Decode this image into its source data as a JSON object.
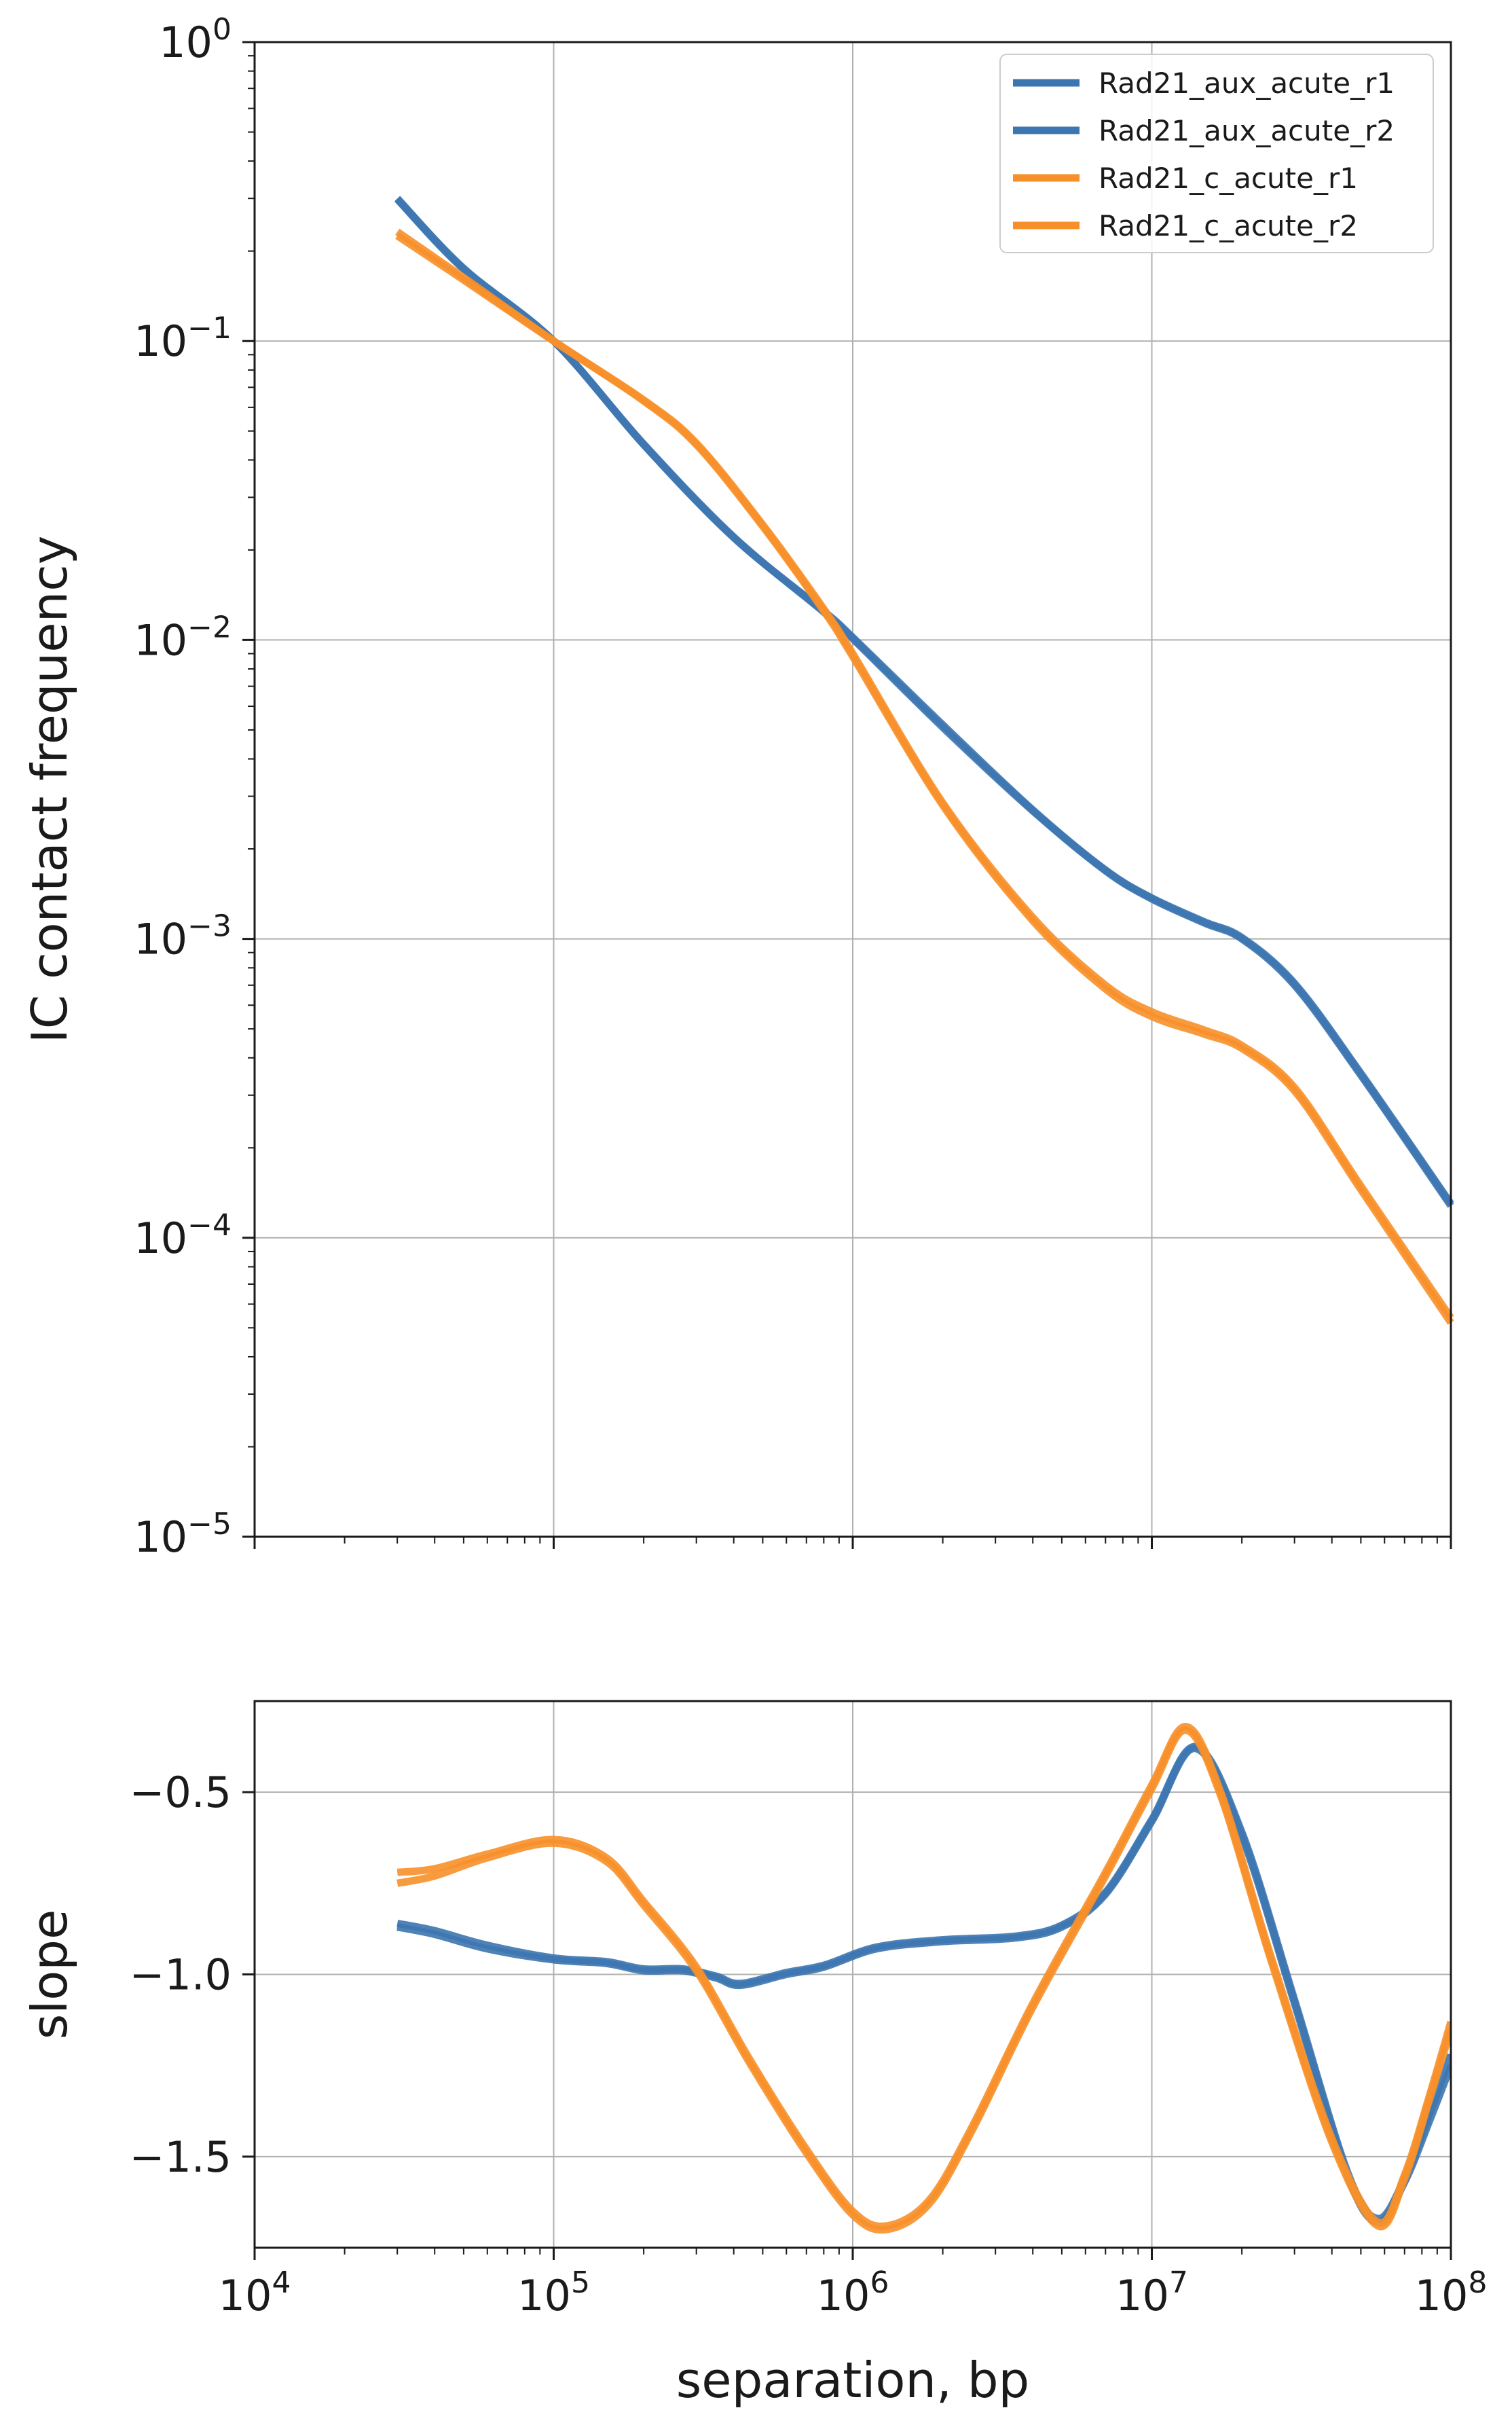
{
  "chart_data": [
    {
      "type": "line",
      "panel": "top",
      "xscale": "log",
      "yscale": "log",
      "xlim": [
        10000,
        100000000
      ],
      "ylim": [
        1e-05,
        1
      ],
      "xlabel": "",
      "ylabel": "IC contact frequency",
      "grid": true,
      "legend_position": "top-right",
      "x_ticks": [
        10000,
        100000,
        1000000,
        10000000,
        100000000
      ],
      "y_ticks": [
        1e-05,
        0.0001,
        0.001,
        0.01,
        0.1,
        1
      ],
      "y_tick_labels": [
        {
          "base": "10",
          "exp": "−5"
        },
        {
          "base": "10",
          "exp": "−4"
        },
        {
          "base": "10",
          "exp": "−3"
        },
        {
          "base": "10",
          "exp": "−2"
        },
        {
          "base": "10",
          "exp": "−1"
        },
        {
          "base": "10",
          "exp": "0"
        }
      ],
      "series": [
        {
          "name": "Rad21_aux_acute_r1",
          "color": "#3c76b0",
          "x": [
            30000,
            50000,
            100000,
            200000,
            400000,
            800000,
            1000000,
            2000000,
            4000000,
            7000000,
            10000000,
            15000000,
            20000000,
            30000000,
            50000000,
            100000000
          ],
          "y": [
            0.3,
            0.175,
            0.1,
            0.045,
            0.022,
            0.0125,
            0.0102,
            0.0052,
            0.0027,
            0.0017,
            0.00137,
            0.00114,
            0.00101,
            0.00071,
            0.000355,
            0.00013
          ]
        },
        {
          "name": "Rad21_aux_acute_r2",
          "color": "#3c76b0",
          "x": [
            30000,
            50000,
            100000,
            200000,
            400000,
            800000,
            1000000,
            2000000,
            4000000,
            7000000,
            10000000,
            15000000,
            20000000,
            30000000,
            50000000,
            100000000
          ],
          "y": [
            0.298,
            0.174,
            0.1,
            0.0452,
            0.0221,
            0.0124,
            0.0101,
            0.0051,
            0.00268,
            0.00169,
            0.00136,
            0.00113,
            0.001,
            0.0007,
            0.00035,
            0.000128
          ]
        },
        {
          "name": "Rad21_c_acute_r1",
          "color": "#f7902a",
          "x": [
            30000,
            50000,
            100000,
            200000,
            300000,
            500000,
            800000,
            1000000,
            2000000,
            4000000,
            7000000,
            10000000,
            15000000,
            20000000,
            30000000,
            50000000,
            100000000
          ],
          "y": [
            0.225,
            0.16,
            0.1,
            0.063,
            0.045,
            0.024,
            0.0125,
            0.0088,
            0.0028,
            0.00115,
            0.00068,
            0.00055,
            0.00048,
            0.00043,
            0.00031,
            0.000145,
            5.2e-05
          ]
        },
        {
          "name": "Rad21_c_acute_r2",
          "color": "#f7902a",
          "x": [
            30000,
            50000,
            100000,
            200000,
            300000,
            500000,
            800000,
            1000000,
            2000000,
            4000000,
            7000000,
            10000000,
            15000000,
            20000000,
            30000000,
            50000000,
            100000000
          ],
          "y": [
            0.232,
            0.163,
            0.1,
            0.0635,
            0.0455,
            0.0243,
            0.0127,
            0.009,
            0.00285,
            0.00118,
            0.0007,
            0.00057,
            0.000495,
            0.00044,
            0.000318,
            0.000149,
            5.4e-05
          ]
        }
      ]
    },
    {
      "type": "line",
      "panel": "bottom",
      "xscale": "log",
      "yscale": "linear",
      "xlim": [
        10000,
        100000000
      ],
      "ylim": [
        -1.75,
        -0.25
      ],
      "xlabel": "separation, bp",
      "ylabel": "slope",
      "grid": true,
      "x_ticks": [
        10000,
        100000,
        1000000,
        10000000,
        100000000
      ],
      "x_tick_labels": [
        {
          "base": "10",
          "exp": "4"
        },
        {
          "base": "10",
          "exp": "5"
        },
        {
          "base": "10",
          "exp": "6"
        },
        {
          "base": "10",
          "exp": "7"
        },
        {
          "base": "10",
          "exp": "8"
        }
      ],
      "y_ticks": [
        -1.5,
        -1.0,
        -0.5
      ],
      "y_tick_labels": [
        "−1.5",
        "−1.0",
        "−0.5"
      ],
      "series": [
        {
          "name": "Rad21_aux_acute_r1",
          "color": "#3c76b0",
          "x": [
            30000,
            40000,
            60000,
            100000,
            150000,
            200000,
            270000,
            350000,
            420000,
            600000,
            800000,
            1200000,
            2000000,
            3500000,
            5000000,
            7000000,
            10000000,
            14000000,
            20000000,
            30000000,
            45000000,
            57000000,
            70000000,
            85000000,
            100000000
          ],
          "y": [
            -0.87,
            -0.89,
            -0.93,
            -0.96,
            -0.97,
            -0.99,
            -0.99,
            -1.01,
            -1.03,
            -1.0,
            -0.98,
            -0.93,
            -0.91,
            -0.9,
            -0.87,
            -0.78,
            -0.58,
            -0.38,
            -0.62,
            -1.08,
            -1.55,
            -1.68,
            -1.57,
            -1.4,
            -1.25
          ]
        },
        {
          "name": "Rad21_aux_acute_r2",
          "color": "#3c76b0",
          "x": [
            30000,
            40000,
            60000,
            100000,
            150000,
            200000,
            270000,
            350000,
            420000,
            600000,
            800000,
            1200000,
            2000000,
            3500000,
            5000000,
            7000000,
            10000000,
            14000000,
            20000000,
            30000000,
            45000000,
            57000000,
            70000000,
            85000000,
            100000000
          ],
          "y": [
            -0.86,
            -0.88,
            -0.92,
            -0.955,
            -0.965,
            -0.985,
            -0.985,
            -1.005,
            -1.025,
            -0.995,
            -0.975,
            -0.925,
            -0.905,
            -0.895,
            -0.865,
            -0.775,
            -0.575,
            -0.375,
            -0.61,
            -1.07,
            -1.54,
            -1.67,
            -1.56,
            -1.38,
            -1.22
          ]
        },
        {
          "name": "Rad21_c_acute_r1",
          "color": "#f7902a",
          "x": [
            30000,
            40000,
            60000,
            100000,
            150000,
            200000,
            300000,
            450000,
            700000,
            1000000,
            1300000,
            1800000,
            2500000,
            4000000,
            7000000,
            10000000,
            13000000,
            17000000,
            25000000,
            40000000,
            57000000,
            70000000,
            85000000,
            100000000
          ],
          "y": [
            -0.72,
            -0.71,
            -0.67,
            -0.63,
            -0.68,
            -0.8,
            -0.98,
            -1.23,
            -1.48,
            -1.65,
            -1.69,
            -1.62,
            -1.42,
            -1.08,
            -0.72,
            -0.48,
            -0.32,
            -0.5,
            -0.95,
            -1.45,
            -1.68,
            -1.55,
            -1.33,
            -1.13
          ]
        },
        {
          "name": "Rad21_c_acute_r2",
          "color": "#f7902a",
          "x": [
            30000,
            40000,
            60000,
            100000,
            150000,
            200000,
            300000,
            450000,
            700000,
            1000000,
            1300000,
            1800000,
            2500000,
            4000000,
            7000000,
            10000000,
            13000000,
            17000000,
            25000000,
            40000000,
            57000000,
            70000000,
            85000000,
            100000000
          ],
          "y": [
            -0.75,
            -0.73,
            -0.68,
            -0.64,
            -0.69,
            -0.81,
            -0.99,
            -1.24,
            -1.49,
            -1.66,
            -1.7,
            -1.63,
            -1.43,
            -1.09,
            -0.73,
            -0.49,
            -0.33,
            -0.51,
            -0.96,
            -1.46,
            -1.69,
            -1.56,
            -1.34,
            -1.15
          ]
        }
      ]
    }
  ]
}
